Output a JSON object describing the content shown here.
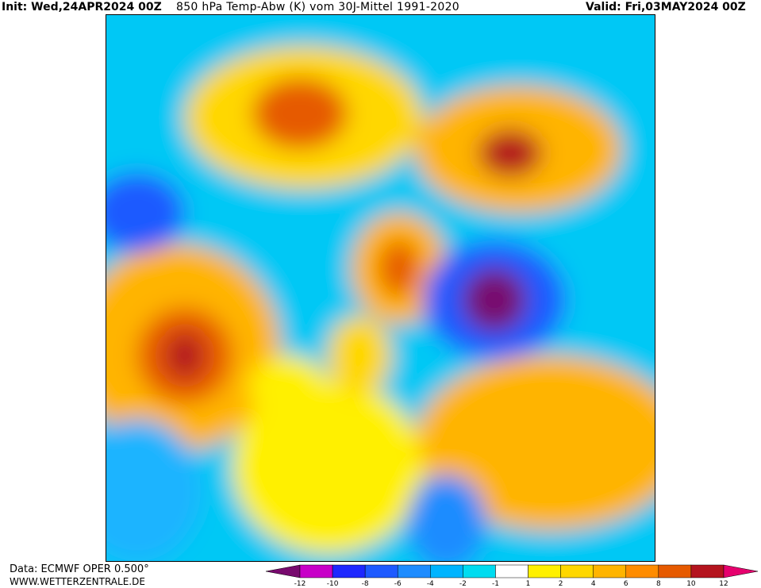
{
  "header": {
    "init": "Init: Wed,24APR2024 00Z",
    "title": "850 hPa Temp-Abw (K) vom 30J-Mittel 1991-2020",
    "valid": "Valid: Fri,03MAY2024 00Z"
  },
  "footer": {
    "source": "Data: ECMWF OPER 0.500°",
    "website": "WWW.WETTERZENTRALE.DE"
  },
  "legend": {
    "ticks": [
      -12,
      -10,
      -8,
      -6,
      -4,
      -2,
      -1,
      1,
      2,
      4,
      6,
      8,
      10,
      12
    ],
    "colors": [
      "#780a6e",
      "#c800c8",
      "#1e28ff",
      "#1e5aff",
      "#1e8cff",
      "#00b4ff",
      "#00dcf0",
      "#ffffff",
      "#fff000",
      "#ffd700",
      "#ffb400",
      "#ff8c00",
      "#e65a00",
      "#b4141e",
      "#e6006e"
    ]
  }
}
